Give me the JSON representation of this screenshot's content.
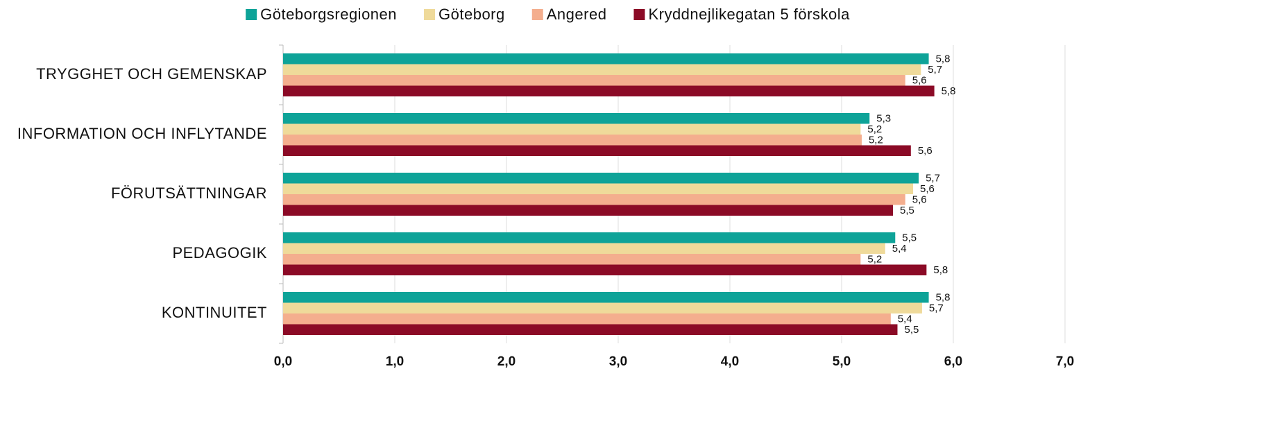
{
  "chart_data": {
    "type": "bar",
    "orientation": "horizontal",
    "categories": [
      "TRYGGHET OCH GEMENSKAP",
      "INFORMATION OCH INFLYTANDE",
      "FÖRUTSÄTTNINGAR",
      "PEDAGOGIK",
      "KONTINUITET"
    ],
    "series": [
      {
        "name": "Göteborgsregionen",
        "color": "#0ea398",
        "values": [
          5.78,
          5.25,
          5.69,
          5.48,
          5.78
        ],
        "value_labels": [
          "5,8",
          "5,3",
          "5,7",
          "5,5",
          "5,8"
        ]
      },
      {
        "name": "Göteborg",
        "color": "#efda9a",
        "values": [
          5.71,
          5.17,
          5.64,
          5.39,
          5.72
        ],
        "value_labels": [
          "5,7",
          "5,2",
          "5,6",
          "5,4",
          "5,7"
        ]
      },
      {
        "name": "Angered",
        "color": "#f4ae8e",
        "values": [
          5.57,
          5.18,
          5.57,
          5.17,
          5.44
        ],
        "value_labels": [
          "5,6",
          "5,2",
          "5,6",
          "5,2",
          "5,4"
        ]
      },
      {
        "name": "Kryddnejlikegatan 5 förskola",
        "color": "#8b0a26",
        "values": [
          5.83,
          5.62,
          5.46,
          5.76,
          5.5
        ],
        "value_labels": [
          "5,8",
          "5,6",
          "5,5",
          "5,8",
          "5,5"
        ]
      }
    ],
    "xlim": [
      0,
      7
    ],
    "xticks": [
      {
        "value": 0,
        "label": "0,0"
      },
      {
        "value": 1,
        "label": "1,0"
      },
      {
        "value": 2,
        "label": "2,0"
      },
      {
        "value": 3,
        "label": "3,0"
      },
      {
        "value": 4,
        "label": "4,0"
      },
      {
        "value": 5,
        "label": "5,0"
      },
      {
        "value": 6,
        "label": "6,0"
      },
      {
        "value": 7,
        "label": "7,0"
      }
    ],
    "grid": true,
    "legend": "top"
  }
}
